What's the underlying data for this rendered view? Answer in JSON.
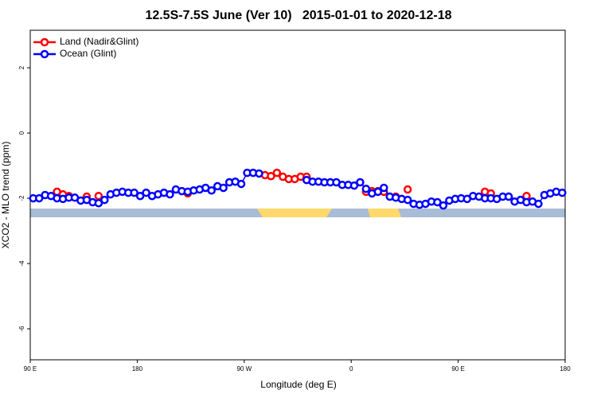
{
  "chart_data": {
    "type": "line",
    "title": "12.5S-7.5S June (Ver 10)   2015-01-01 to 2020-12-18",
    "xlabel": "Longitude (deg E)",
    "ylabel": "XCO2 - MLO trend (ppm)",
    "xlim": [
      90,
      540
    ],
    "xticks": [
      {
        "value": 90,
        "label": "90 E"
      },
      {
        "value": 180,
        "label": "180"
      },
      {
        "value": 270,
        "label": "90 W"
      },
      {
        "value": 360,
        "label": "0"
      },
      {
        "value": 450,
        "label": "90 E"
      },
      {
        "value": 540,
        "label": "180"
      }
    ],
    "ylim": [
      -6.95,
      3.15
    ],
    "yticks": [
      -6,
      -4,
      -2,
      0,
      2
    ],
    "legend": "top-left",
    "x": [
      92.5,
      97.5,
      102.5,
      107.5,
      112.5,
      117.5,
      122.5,
      127.5,
      132.5,
      137.5,
      142.5,
      147.5,
      152.5,
      157.5,
      162.5,
      167.5,
      172.5,
      177.5,
      182.5,
      187.5,
      192.5,
      197.5,
      202.5,
      207.5,
      212.5,
      217.5,
      222.5,
      227.5,
      232.5,
      237.5,
      242.5,
      247.5,
      252.5,
      257.5,
      262.5,
      267.5,
      272.5,
      277.5,
      282.5,
      287.5,
      292.5,
      297.5,
      302.5,
      307.5,
      312.5,
      317.5,
      322.5,
      327.5,
      332.5,
      337.5,
      342.5,
      347.5,
      352.5,
      357.5,
      362.5,
      367.5,
      372.5,
      377.5,
      382.5,
      387.5,
      392.5,
      397.5,
      402.5,
      407.5,
      412.5,
      417.5,
      422.5,
      427.5,
      432.5,
      437.5,
      442.5,
      447.5,
      452.5,
      457.5,
      462.5,
      467.5,
      472.5,
      477.5,
      482.5,
      487.5,
      492.5,
      497.5,
      502.5,
      507.5,
      512.5,
      517.5,
      522.5,
      527.5,
      532.5,
      537.5
    ],
    "series": [
      {
        "name": "Land (Nadir&Glint)",
        "color": "#ff0000",
        "values": [
          null,
          null,
          null,
          null,
          -1.8,
          -1.88,
          -1.93,
          null,
          null,
          -1.95,
          null,
          -1.93,
          null,
          null,
          null,
          null,
          null,
          null,
          null,
          null,
          null,
          null,
          null,
          null,
          null,
          null,
          -1.85,
          null,
          null,
          null,
          null,
          null,
          null,
          null,
          null,
          null,
          null,
          null,
          null,
          -1.29,
          -1.32,
          -1.22,
          -1.34,
          -1.41,
          -1.41,
          -1.34,
          -1.34,
          null,
          null,
          null,
          null,
          null,
          null,
          null,
          null,
          null,
          -1.8,
          -1.78,
          -1.78,
          -1.8,
          null,
          -1.95,
          null,
          -1.73,
          null,
          null,
          null,
          null,
          null,
          null,
          null,
          null,
          null,
          null,
          null,
          null,
          -1.8,
          -1.85,
          null,
          null,
          -1.95,
          null,
          null,
          -1.93,
          null,
          null,
          null,
          null,
          null,
          null
        ]
      },
      {
        "name": "Ocean (Glint)",
        "color": "#0000ff",
        "values": [
          -2.0,
          -2.0,
          -1.9,
          -1.93,
          -2.0,
          -2.02,
          -1.98,
          -1.98,
          -2.07,
          -2.05,
          -2.12,
          -2.15,
          -2.05,
          -1.88,
          -1.83,
          -1.8,
          -1.83,
          -1.83,
          -1.93,
          -1.83,
          -1.93,
          -1.88,
          -1.83,
          -1.88,
          -1.73,
          -1.78,
          -1.8,
          -1.76,
          -1.73,
          -1.68,
          -1.76,
          -1.63,
          -1.68,
          -1.51,
          -1.49,
          -1.56,
          -1.22,
          -1.22,
          -1.24,
          null,
          null,
          null,
          null,
          null,
          null,
          null,
          -1.44,
          -1.49,
          -1.49,
          -1.51,
          -1.51,
          -1.51,
          -1.59,
          -1.59,
          -1.61,
          -1.51,
          -1.71,
          -1.85,
          -1.8,
          -1.68,
          -1.95,
          -1.98,
          -2.02,
          -2.05,
          -2.17,
          -2.2,
          -2.17,
          -2.1,
          -2.12,
          -2.22,
          -2.07,
          -2.02,
          -2.0,
          -2.02,
          -1.93,
          -1.95,
          -2.0,
          -2.0,
          -2.02,
          -1.95,
          -1.95,
          -2.1,
          -2.05,
          -2.12,
          -2.1,
          -2.17,
          -1.9,
          -1.85,
          -1.8,
          -1.83
        ]
      }
    ]
  }
}
